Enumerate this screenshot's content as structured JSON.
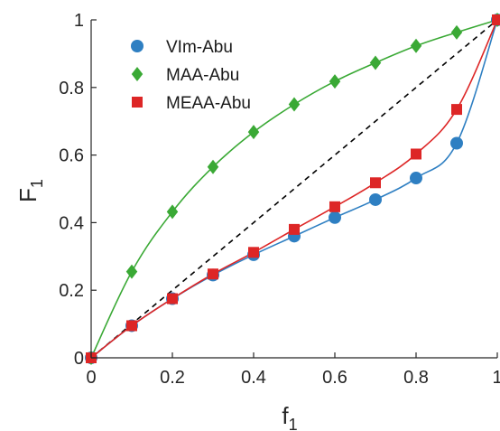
{
  "chart_data": {
    "type": "scatter",
    "xlabel": "f",
    "xlabel_sub": "1",
    "ylabel": "F",
    "ylabel_sub": "1",
    "xlim": [
      0,
      1
    ],
    "ylim": [
      0,
      1
    ],
    "x_ticks": [
      "0",
      "0.2",
      "0.4",
      "0.6",
      "0.8",
      "1"
    ],
    "y_ticks": [
      "0",
      "0.2",
      "0.4",
      "0.6",
      "0.8",
      "1"
    ],
    "grid": false,
    "legend_position": "top-left",
    "reference_line": {
      "style": "dashed",
      "color": "#000000",
      "from": [
        0,
        0
      ],
      "to": [
        1,
        1
      ]
    },
    "series": [
      {
        "name": "VIm-Abu",
        "marker": "circle",
        "color": "#2e7fc2",
        "x": [
          0,
          0.1,
          0.2,
          0.3,
          0.4,
          0.5,
          0.6,
          0.7,
          0.8,
          0.9,
          1
        ],
        "y": [
          0,
          0.095,
          0.175,
          0.245,
          0.305,
          0.36,
          0.415,
          0.468,
          0.532,
          0.635,
          1
        ]
      },
      {
        "name": "MAA-Abu",
        "marker": "diamond",
        "color": "#3aa935",
        "x": [
          0,
          0.1,
          0.2,
          0.3,
          0.4,
          0.5,
          0.6,
          0.7,
          0.8,
          0.9,
          1
        ],
        "y": [
          0,
          0.255,
          0.432,
          0.565,
          0.668,
          0.75,
          0.818,
          0.873,
          0.923,
          0.963,
          1
        ]
      },
      {
        "name": "MEAA-Abu",
        "marker": "square",
        "color": "#dd2626",
        "x": [
          0,
          0.1,
          0.2,
          0.3,
          0.4,
          0.5,
          0.6,
          0.7,
          0.8,
          0.9,
          1
        ],
        "y": [
          0,
          0.095,
          0.175,
          0.248,
          0.312,
          0.38,
          0.447,
          0.518,
          0.603,
          0.735,
          1
        ]
      }
    ]
  }
}
